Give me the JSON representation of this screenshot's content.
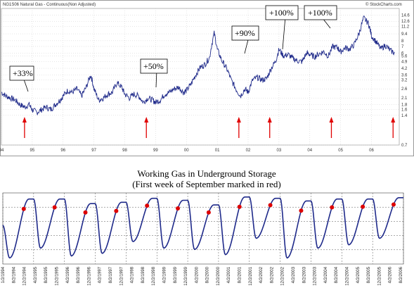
{
  "chart_data": [
    {
      "type": "line",
      "header": "NG1S06 Natural Gas - Continuous(Non Adjusted)",
      "watermark": "© StockCharts.com",
      "y_scale": "log",
      "y_ticks": [
        0.7,
        1.4,
        1.6,
        1.8,
        2.1,
        2.6,
        3.2,
        3.6,
        4.2,
        4.9,
        5.6,
        6.0,
        7.0,
        8.0,
        9.4,
        11.2,
        12.6,
        14.6
      ],
      "ylim": [
        0.7,
        17.0
      ],
      "x_ticks": [
        "94",
        "95",
        "96",
        "97",
        "98",
        "99",
        "00",
        "01",
        "02",
        "03",
        "04",
        "05",
        "06"
      ],
      "xlim": [
        1994.0,
        2006.9
      ],
      "grid": true,
      "line_color": "#1f2a8a",
      "series": [
        {
          "x": [
            1994.0,
            1994.15,
            1994.3,
            1994.45,
            1994.6,
            1994.75,
            1994.9,
            1995.0,
            1995.15,
            1995.3,
            1995.45,
            1995.6,
            1995.75,
            1995.9,
            1996.0,
            1996.15,
            1996.3,
            1996.45,
            1996.6,
            1996.75,
            1996.9,
            1997.0,
            1997.15,
            1997.3,
            1997.45,
            1997.6,
            1997.75,
            1997.9,
            1998.0,
            1998.15,
            1998.3,
            1998.45,
            1998.6,
            1998.75,
            1998.9,
            1999.0,
            1999.15,
            1999.3,
            1999.45,
            1999.6,
            1999.75,
            1999.9,
            2000.0,
            2000.15,
            2000.3,
            2000.45,
            2000.6,
            2000.75,
            2000.9,
            2001.0,
            2001.15,
            2001.3,
            2001.45,
            2001.6,
            2001.75,
            2001.9,
            2002.0,
            2002.15,
            2002.3,
            2002.45,
            2002.6,
            2002.75,
            2002.9,
            2003.0,
            2003.15,
            2003.3,
            2003.45,
            2003.6,
            2003.75,
            2003.9,
            2004.0,
            2004.15,
            2004.3,
            2004.45,
            2004.6,
            2004.75,
            2004.9,
            2005.0,
            2005.15,
            2005.3,
            2005.45,
            2005.6,
            2005.75,
            2005.9,
            2006.0,
            2006.15,
            2006.3,
            2006.45,
            2006.6,
            2006.75
          ],
          "values": [
            2.4,
            2.2,
            2.1,
            2.0,
            1.8,
            1.7,
            1.8,
            1.6,
            1.5,
            1.6,
            1.7,
            1.6,
            1.8,
            2.0,
            2.2,
            2.5,
            2.4,
            2.6,
            2.2,
            2.7,
            3.6,
            2.6,
            2.0,
            2.1,
            2.3,
            2.4,
            3.0,
            2.7,
            2.3,
            2.1,
            2.3,
            2.2,
            1.9,
            2.1,
            2.0,
            1.9,
            2.0,
            2.3,
            2.4,
            2.6,
            2.7,
            2.4,
            2.5,
            2.9,
            3.6,
            4.3,
            4.6,
            5.4,
            9.5,
            6.5,
            5.0,
            4.2,
            3.2,
            2.6,
            2.2,
            2.6,
            2.4,
            3.2,
            3.4,
            3.2,
            3.3,
            4.2,
            5.0,
            6.5,
            5.6,
            5.8,
            5.3,
            5.0,
            4.9,
            6.0,
            5.8,
            5.5,
            5.9,
            6.2,
            5.6,
            7.0,
            6.8,
            6.2,
            6.8,
            6.6,
            7.4,
            9.5,
            13.6,
            12.0,
            9.0,
            7.8,
            6.6,
            7.2,
            6.4,
            6.0
          ]
        }
      ],
      "annotations": [
        {
          "label": "+33%",
          "arrow_x": 1994.75
        },
        {
          "label": "+50%",
          "arrow_x": 1998.7
        },
        {
          "label": "+90%",
          "arrow_x": 2001.7
        },
        {
          "label": "+100%",
          "arrow_x": 2002.7
        },
        {
          "label": "+100%",
          "arrow_x": 2004.7
        },
        {
          "label": "",
          "arrow_x": 2006.7
        }
      ]
    },
    {
      "type": "line",
      "title": "Working Gas in Underground Storage",
      "subtitle": "(First week of September marked in red)",
      "x_labels": [
        "1/2/1994",
        "8/2/1994",
        "12/2/1994",
        "4/2/1995",
        "8/2/1995",
        "12/2/1995",
        "4/2/1996",
        "8/2/1996",
        "12/2/1996",
        "4/2/1997",
        "8/2/1997",
        "12/2/1997",
        "4/2/1998",
        "8/2/1998",
        "12/2/1998",
        "4/2/1999",
        "8/2/1999",
        "12/2/1999",
        "4/2/2000",
        "8/2/2000",
        "12/2/2000",
        "4/2/2001",
        "8/2/2001",
        "12/2/2001",
        "4/2/2002",
        "8/2/2002",
        "12/2/2002",
        "4/2/2003",
        "8/2/2003",
        "12/2/2003",
        "4/2/2004",
        "8/2/2004",
        "12/2/2004",
        "4/2/2005",
        "8/2/2005",
        "12/2/2005",
        "4/2/2006",
        "8/2/2006"
      ],
      "grid": true,
      "line_color": "#1f2a8a",
      "marker_color": "#dd0000",
      "years": [
        1994,
        1995,
        1996,
        1997,
        1998,
        1999,
        2000,
        2001,
        2002,
        2003,
        2004,
        2005,
        2006
      ],
      "troughs": [
        0.05,
        0.2,
        0.08,
        0.12,
        0.3,
        0.2,
        0.18,
        0.1,
        0.35,
        0.05,
        0.2,
        0.25,
        0.35
      ],
      "peaks": [
        0.95,
        0.95,
        0.88,
        0.9,
        0.96,
        0.93,
        0.86,
        0.98,
        0.96,
        0.92,
        0.95,
        0.95,
        0.97
      ],
      "september_markers": [
        0.8,
        0.7,
        0.62,
        0.68,
        0.78,
        0.75,
        0.6,
        0.82,
        0.8,
        0.7,
        0.72,
        0.75,
        0.92
      ]
    }
  ]
}
